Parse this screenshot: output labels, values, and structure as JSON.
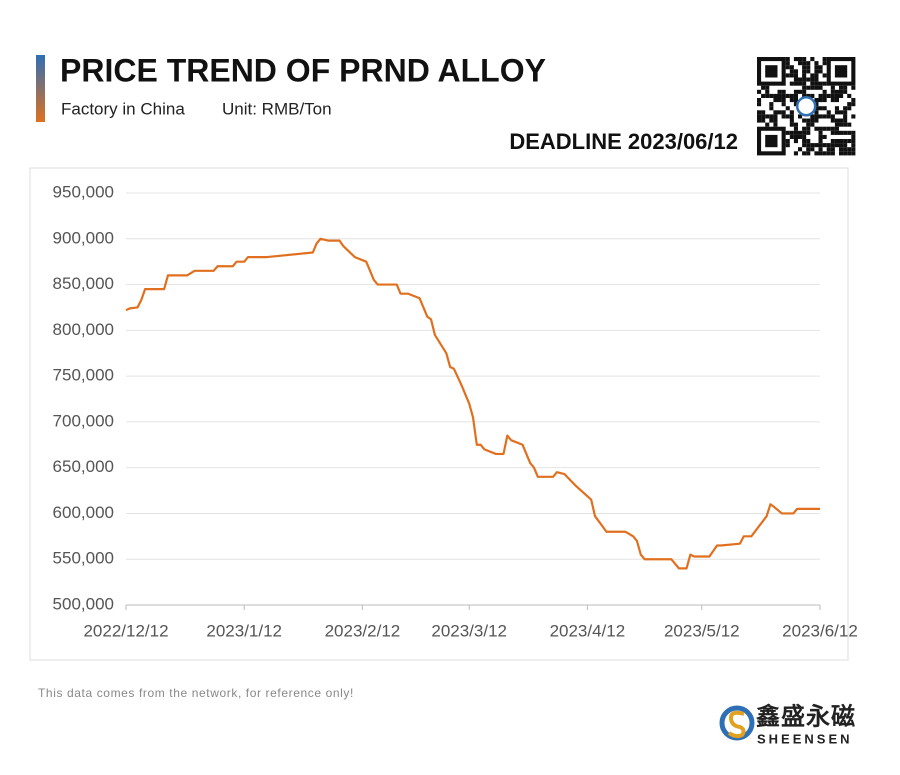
{
  "chart_data": {
    "type": "line",
    "title": "PRICE TREND OF PRND ALLOY",
    "subtitle": "Factory in China",
    "unit": "Unit: RMB/Ton",
    "deadline": "DEADLINE 2023/06/12",
    "footnote": "This data comes from the network, for reference only!",
    "brand": {
      "name": "鑫盛永磁",
      "latin": "SHEENSEN"
    },
    "color": "#e0701f",
    "grid": true,
    "x": [
      "2022/12/12",
      "2022/12/13",
      "2022/12/15",
      "2022/12/16",
      "2022/12/17",
      "2022/12/22",
      "2022/12/23",
      "2022/12/28",
      "2022/12/30",
      "2023/1/4",
      "2023/1/5",
      "2023/1/9",
      "2023/1/10",
      "2023/1/12",
      "2023/1/13",
      "2023/1/18",
      "2023/1/30",
      "2023/1/31",
      "2023/2/1",
      "2023/2/3",
      "2023/2/6",
      "2023/2/7",
      "2023/2/10",
      "2023/2/13",
      "2023/2/15",
      "2023/2/16",
      "2023/2/21",
      "2023/2/22",
      "2023/2/24",
      "2023/2/27",
      "2023/3/1",
      "2023/3/2",
      "2023/3/3",
      "2023/3/6",
      "2023/3/7",
      "2023/3/8",
      "2023/3/10",
      "2023/3/12",
      "2023/3/13",
      "2023/3/14",
      "2023/3/15",
      "2023/3/16",
      "2023/3/19",
      "2023/3/21",
      "2023/3/22",
      "2023/3/23",
      "2023/3/26",
      "2023/3/28",
      "2023/3/29",
      "2023/3/30",
      "2023/4/3",
      "2023/4/4",
      "2023/4/6",
      "2023/4/9",
      "2023/4/13",
      "2023/4/14",
      "2023/4/17",
      "2023/4/22",
      "2023/4/24",
      "2023/4/25",
      "2023/4/26",
      "2023/4/27",
      "2023/5/4",
      "2023/5/6",
      "2023/5/8",
      "2023/5/9",
      "2023/5/10",
      "2023/5/14",
      "2023/5/16",
      "2023/5/17",
      "2023/5/22",
      "2023/5/23",
      "2023/5/25",
      "2023/5/29",
      "2023/5/30",
      "2023/5/31",
      "2023/6/2",
      "2023/6/5",
      "2023/6/6",
      "2023/6/12"
    ],
    "values": [
      822000,
      824000,
      825000,
      833000,
      845000,
      845000,
      860000,
      860000,
      865000,
      865000,
      870000,
      870000,
      875000,
      875000,
      880000,
      880000,
      885000,
      895000,
      900000,
      898000,
      898000,
      892000,
      880000,
      875000,
      855000,
      850000,
      850000,
      840000,
      840000,
      835000,
      815000,
      812000,
      795000,
      775000,
      760000,
      758000,
      740000,
      720000,
      705000,
      675000,
      675000,
      670000,
      665000,
      665000,
      685000,
      680000,
      675000,
      655000,
      650000,
      640000,
      640000,
      645000,
      643000,
      630000,
      615000,
      597000,
      580000,
      580000,
      575000,
      570000,
      555000,
      550000,
      550000,
      540000,
      540000,
      555000,
      553000,
      553000,
      565000,
      565000,
      567000,
      575000,
      575000,
      597000,
      610000,
      607000,
      600000,
      600000,
      605000,
      605000
    ],
    "xlim": [
      "2022/12/12",
      "2023/6/12"
    ],
    "xticks": [
      "2022/12/12",
      "2023/1/12",
      "2023/2/12",
      "2023/3/12",
      "2023/4/12",
      "2023/5/12",
      "2023/6/12"
    ],
    "ylim": [
      500000,
      950000
    ],
    "yticks": [
      {
        "value": 500000,
        "label": "500,000"
      },
      {
        "value": 550000,
        "label": "550,000"
      },
      {
        "value": 600000,
        "label": "600,000"
      },
      {
        "value": 650000,
        "label": "650,000"
      },
      {
        "value": 700000,
        "label": "700,000"
      },
      {
        "value": 750000,
        "label": "750,000"
      },
      {
        "value": 800000,
        "label": "800,000"
      },
      {
        "value": 850000,
        "label": "850,000"
      },
      {
        "value": 900000,
        "label": "900,000"
      },
      {
        "value": 950000,
        "label": "950,000"
      }
    ]
  }
}
